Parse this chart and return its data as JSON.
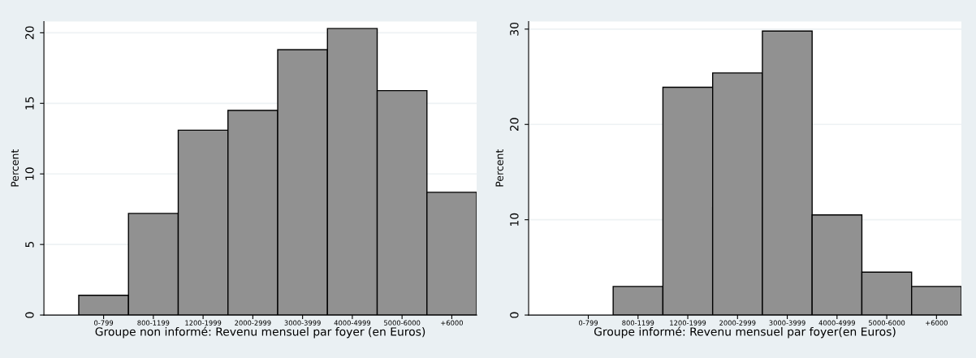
{
  "chart_data": [
    {
      "type": "bar",
      "categories": [
        "0-799",
        "800-1199",
        "1200-1999",
        "2000-2999",
        "3000-3999",
        "4000-4999",
        "5000-6000",
        "+6000"
      ],
      "values": [
        1.4,
        7.2,
        13.1,
        14.5,
        18.8,
        20.3,
        15.9,
        8.7
      ],
      "color": "#919191",
      "xlabel": "Groupe non informé: Revenu mensuel par foyer (en Euros)",
      "ylabel": "Percent",
      "ylim": [
        0,
        20.8
      ],
      "yticks": [
        0,
        5,
        10,
        15,
        20
      ],
      "grid": "y"
    },
    {
      "type": "bar",
      "categories": [
        "0-799",
        "800-1199",
        "1200-1999",
        "2000-2999",
        "3000-3999",
        "4000-4999",
        "5000-6000",
        "+6000"
      ],
      "values": [
        0,
        3.0,
        23.9,
        25.4,
        29.8,
        10.5,
        4.5,
        3.0
      ],
      "color": "#919191",
      "xlabel": "Groupe informé: Revenu mensuel par foyer(en Euros)",
      "ylabel": "Percent",
      "ylim": [
        0,
        30.8
      ],
      "yticks": [
        0,
        10,
        20,
        30
      ],
      "grid": "y"
    }
  ]
}
